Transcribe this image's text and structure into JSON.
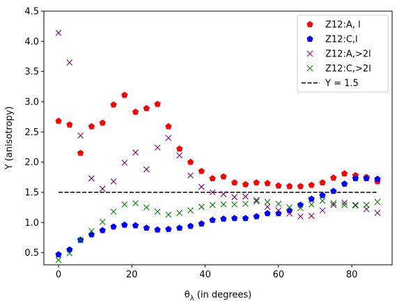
{
  "chart_data": {
    "type": "scatter",
    "xlabel_main": "θ",
    "xlabel_sub": "λ",
    "xlabel_rest": " (in degrees)",
    "ylabel": "Y (anisotropy)",
    "xlim": [
      -4,
      91
    ],
    "ylim": [
      0.3,
      4.5
    ],
    "xticks": [
      0,
      20,
      40,
      60,
      80
    ],
    "yticks": [
      0.5,
      1.0,
      1.5,
      2.0,
      2.5,
      3.0,
      3.5,
      4.0,
      4.5
    ],
    "ytick_labels": [
      "0.5",
      "1.0",
      "1.5",
      "2.0",
      "2.5",
      "3.0",
      "3.5",
      "4.0",
      "4.5"
    ],
    "grid": false,
    "legend_position": "top-right",
    "series": [
      {
        "name": "Z12:A, l",
        "marker": "pentagon",
        "color": "#ff0000",
        "x": [
          0,
          3,
          6,
          9,
          12,
          15,
          18,
          21,
          24,
          27,
          30,
          33,
          36,
          39,
          42,
          45,
          48,
          51,
          54,
          57,
          60,
          63,
          66,
          69,
          72,
          75,
          78,
          81,
          84,
          87
        ],
        "y": [
          2.68,
          2.62,
          2.15,
          2.59,
          2.65,
          2.95,
          3.11,
          2.83,
          2.89,
          2.96,
          2.59,
          2.22,
          2.0,
          1.85,
          1.73,
          1.76,
          1.66,
          1.63,
          1.66,
          1.65,
          1.61,
          1.6,
          1.6,
          1.62,
          1.66,
          1.74,
          1.81,
          1.78,
          1.75,
          1.68
        ]
      },
      {
        "name": "Z12:C,l",
        "marker": "pentagon",
        "color": "#0000ff",
        "x": [
          0,
          3,
          6,
          9,
          12,
          15,
          18,
          21,
          24,
          27,
          30,
          33,
          36,
          39,
          42,
          45,
          48,
          51,
          54,
          57,
          60,
          63,
          66,
          69,
          72,
          75,
          78,
          81,
          84,
          87
        ],
        "y": [
          0.47,
          0.55,
          0.71,
          0.8,
          0.87,
          0.93,
          0.96,
          0.95,
          0.91,
          0.88,
          0.89,
          0.91,
          0.94,
          0.98,
          1.04,
          1.06,
          1.07,
          1.07,
          1.1,
          1.15,
          1.15,
          1.2,
          1.29,
          1.39,
          1.45,
          1.52,
          1.64,
          1.73,
          1.73,
          1.72
        ]
      },
      {
        "name": "Z12:A,>2l",
        "marker": "x",
        "color": "#800080",
        "x": [
          0,
          3,
          6,
          9,
          12,
          15,
          18,
          21,
          24,
          27,
          30,
          33,
          36,
          39,
          42,
          45,
          48,
          51,
          54,
          57,
          60,
          63,
          66,
          69,
          72,
          75,
          78,
          81,
          84,
          87
        ],
        "y": [
          4.14,
          3.65,
          2.44,
          1.73,
          1.56,
          1.68,
          1.99,
          2.16,
          1.88,
          2.24,
          2.4,
          2.11,
          1.78,
          1.59,
          1.5,
          1.47,
          1.42,
          1.43,
          1.37,
          1.26,
          1.2,
          1.15,
          1.1,
          1.11,
          1.2,
          1.29,
          1.33,
          1.29,
          1.22,
          1.16
        ]
      },
      {
        "name": "Z12:C,>2l",
        "marker": "x",
        "color": "#008000",
        "x": [
          0,
          3,
          6,
          9,
          12,
          15,
          18,
          21,
          24,
          27,
          30,
          33,
          36,
          39,
          42,
          45,
          48,
          51,
          54,
          57,
          60,
          63,
          66,
          69,
          72,
          75,
          78,
          81,
          84,
          87
        ],
        "y": [
          0.38,
          0.49,
          0.71,
          0.86,
          1.01,
          1.18,
          1.3,
          1.32,
          1.25,
          1.18,
          1.13,
          1.16,
          1.2,
          1.26,
          1.29,
          1.3,
          1.3,
          1.31,
          1.35,
          1.34,
          1.31,
          1.25,
          1.24,
          1.3,
          1.36,
          1.32,
          1.29,
          1.28,
          1.29,
          1.34
        ]
      }
    ],
    "reference_line": {
      "name": "Y = 1.5",
      "y": 1.5,
      "x_range": [
        0,
        87
      ],
      "style": "dashed",
      "color": "#000000"
    }
  }
}
